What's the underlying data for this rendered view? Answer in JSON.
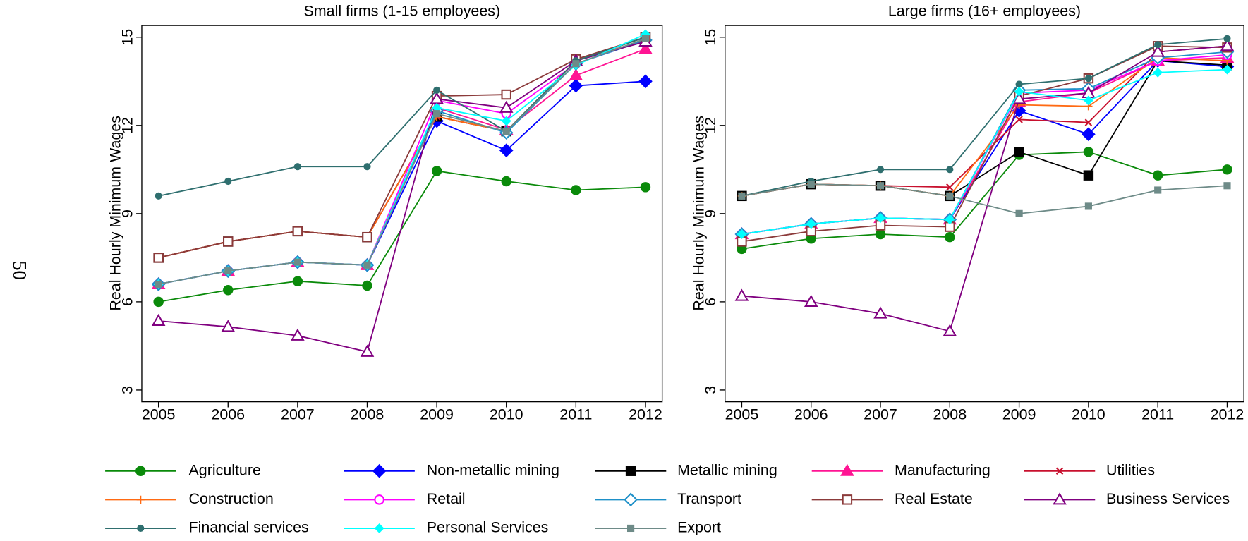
{
  "page_number": "50",
  "legend": {
    "items": [
      {
        "name": "Agriculture",
        "color": "#0a8a0a",
        "marker": "filled-circle"
      },
      {
        "name": "Non-metallic mining",
        "color": "#0000ff",
        "marker": "filled-diamond"
      },
      {
        "name": "Metallic mining",
        "color": "#000000",
        "marker": "filled-square"
      },
      {
        "name": "Manufacturing",
        "color": "#ff1493",
        "marker": "filled-triangle"
      },
      {
        "name": "Utilities",
        "color": "#c8102e",
        "marker": "x"
      },
      {
        "name": "Construction",
        "color": "#ff6a13",
        "marker": "plus"
      },
      {
        "name": "Retail",
        "color": "#ff00ff",
        "marker": "hollow-circle"
      },
      {
        "name": "Transport",
        "color": "#1e90c8",
        "marker": "hollow-diamond"
      },
      {
        "name": "Real Estate",
        "color": "#8b3a3a",
        "marker": "hollow-square"
      },
      {
        "name": "Business Services",
        "color": "#800080",
        "marker": "hollow-triangle"
      },
      {
        "name": "Financial services",
        "color": "#2f6f6f",
        "marker": "small-circle"
      },
      {
        "name": "Personal Services",
        "color": "#00ffff",
        "marker": "small-diamond"
      },
      {
        "name": "Export",
        "color": "#6e8b88",
        "marker": "small-square"
      }
    ]
  },
  "chart_data": [
    {
      "type": "line",
      "title": "Small firms (1-15 employees)",
      "y_label": "Real Hourly Minimum Wages",
      "categories": [
        "2005",
        "2006",
        "2007",
        "2008",
        "2009",
        "2010",
        "2011",
        "2012"
      ],
      "ylim": [
        2.6,
        15.4
      ],
      "yticks": [
        3,
        6,
        9,
        12,
        15
      ],
      "series": [
        {
          "values": [
            6.0,
            6.4,
            6.7,
            6.55,
            10.45,
            10.1,
            9.8,
            9.9
          ]
        },
        {
          "values": [
            6.6,
            7.05,
            7.35,
            7.25,
            12.15,
            11.15,
            13.35,
            13.5
          ]
        },
        {
          "values": [
            7.5,
            8.05,
            8.4,
            8.2,
            12.3,
            11.8,
            14.2,
            15.0
          ]
        },
        {
          "values": [
            6.6,
            7.05,
            7.35,
            7.25,
            12.6,
            11.85,
            13.7,
            14.6
          ]
        },
        {
          "values": [
            7.5,
            8.05,
            8.4,
            8.2,
            12.3,
            11.8,
            14.2,
            14.9
          ]
        },
        {
          "values": [
            7.5,
            8.05,
            8.4,
            8.2,
            12.3,
            11.8,
            14.2,
            15.0
          ]
        },
        {
          "values": [
            6.6,
            7.05,
            7.35,
            7.25,
            12.85,
            12.4,
            14.1,
            14.9
          ]
        },
        {
          "values": [
            6.6,
            7.05,
            7.35,
            7.25,
            12.5,
            11.75,
            14.1,
            14.9
          ]
        },
        {
          "values": [
            7.5,
            8.05,
            8.4,
            8.2,
            13.0,
            13.05,
            14.25,
            15.0
          ]
        },
        {
          "values": [
            5.35,
            5.15,
            4.85,
            4.3,
            12.9,
            12.6,
            14.2,
            14.85
          ]
        },
        {
          "values": [
            9.6,
            10.1,
            10.6,
            10.6,
            13.2,
            11.8,
            14.2,
            15.0
          ]
        },
        {
          "values": [
            6.6,
            7.05,
            7.35,
            7.25,
            12.6,
            12.15,
            14.05,
            15.1
          ]
        },
        {
          "values": [
            6.6,
            7.05,
            7.35,
            7.25,
            12.4,
            11.8,
            14.1,
            14.95
          ]
        }
      ]
    },
    {
      "type": "line",
      "title": "Large firms (16+ employees)",
      "y_label": "Real Hourly Minimum Wages",
      "categories": [
        "2005",
        "2006",
        "2007",
        "2008",
        "2009",
        "2010",
        "2011",
        "2012"
      ],
      "ylim": [
        2.6,
        15.4
      ],
      "yticks": [
        3,
        6,
        9,
        12,
        15
      ],
      "series": [
        {
          "values": [
            7.8,
            8.15,
            8.3,
            8.2,
            11.0,
            11.1,
            10.3,
            10.5
          ]
        },
        {
          "values": [
            8.3,
            8.65,
            8.85,
            8.8,
            12.5,
            11.7,
            14.2,
            14.0
          ]
        },
        {
          "values": [
            9.6,
            10.0,
            9.95,
            9.6,
            11.1,
            10.3,
            14.2,
            14.05
          ]
        },
        {
          "values": [
            8.3,
            8.65,
            8.85,
            8.8,
            12.8,
            13.1,
            14.2,
            14.3
          ]
        },
        {
          "values": [
            9.6,
            10.0,
            9.95,
            9.9,
            12.2,
            12.1,
            14.5,
            14.7
          ]
        },
        {
          "values": [
            9.6,
            10.0,
            9.95,
            9.6,
            12.7,
            12.65,
            14.3,
            14.2
          ]
        },
        {
          "values": [
            8.3,
            8.65,
            8.85,
            8.8,
            13.1,
            13.2,
            14.2,
            14.4
          ]
        },
        {
          "values": [
            8.3,
            8.65,
            8.85,
            8.8,
            13.2,
            13.25,
            14.3,
            14.5
          ]
        },
        {
          "values": [
            8.05,
            8.4,
            8.6,
            8.55,
            13.0,
            13.6,
            14.7,
            14.65
          ]
        },
        {
          "values": [
            6.2,
            6.0,
            5.6,
            5.0,
            12.9,
            13.1,
            14.5,
            14.7
          ]
        },
        {
          "values": [
            9.6,
            10.1,
            10.5,
            10.5,
            13.4,
            13.6,
            14.75,
            14.95
          ]
        },
        {
          "values": [
            8.3,
            8.65,
            8.85,
            8.8,
            13.15,
            12.85,
            13.8,
            13.9
          ]
        },
        {
          "values": [
            9.6,
            10.0,
            9.95,
            9.6,
            9.0,
            9.25,
            9.8,
            9.95
          ]
        }
      ]
    }
  ]
}
